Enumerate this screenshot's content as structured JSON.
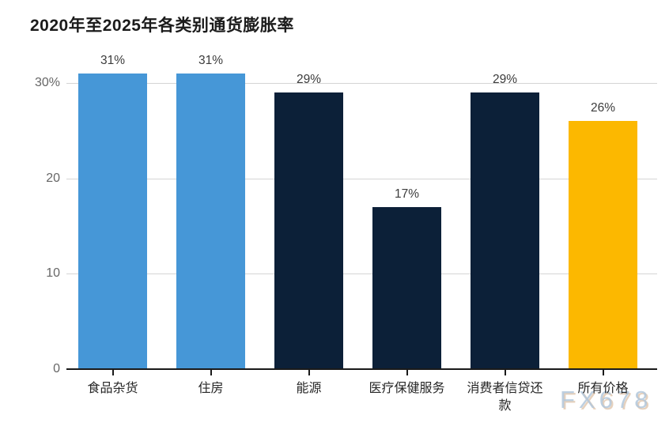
{
  "page": {
    "background_color": "#ffffff",
    "watermark_text": "FX678"
  },
  "header": {
    "title": "2020年至2025年各类别通货膨胀率"
  },
  "chart_data": {
    "type": "bar",
    "title": "2020年至2025年各类别通货膨胀率",
    "categories": [
      "食品杂货",
      "住房",
      "能源",
      "医疗保健服务",
      "消费者信贷还款",
      "所有价格"
    ],
    "values": [
      31,
      31,
      29,
      17,
      29,
      26
    ],
    "value_labels": [
      "31%",
      "31%",
      "29%",
      "17%",
      "29%",
      "26%"
    ],
    "bar_colors": [
      "#4697d7",
      "#4697d7",
      "#0c2038",
      "#0c2038",
      "#0c2038",
      "#fcb800"
    ],
    "xlabel": "",
    "ylabel": "",
    "ylim": [
      0,
      33
    ],
    "yticks": [
      {
        "value": 0,
        "label": "0"
      },
      {
        "value": 10,
        "label": "10"
      },
      {
        "value": 20,
        "label": "20"
      },
      {
        "value": 30,
        "label": "30%"
      }
    ],
    "gridline_values": [
      10,
      20,
      30
    ],
    "grid": true,
    "legend_position": "none",
    "colors": {
      "grocery_housing_blue": "#4697d7",
      "category_navy": "#0c2038",
      "all_prices_orange": "#fcb800",
      "gridline": "#d5d5d5",
      "axis": "#1a1a1a",
      "tick_label": "#666666",
      "value_label": "#3c3c3c",
      "watermark": "#b2c7da"
    }
  }
}
